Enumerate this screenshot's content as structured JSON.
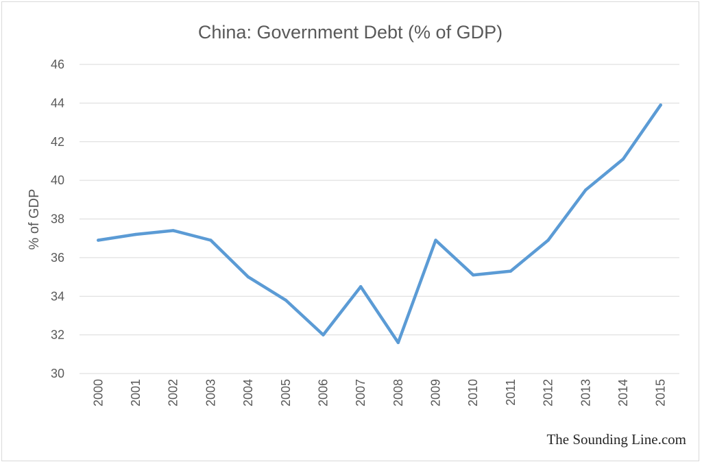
{
  "chart_data": {
    "type": "line",
    "title": "China: Government Debt (% of GDP)",
    "xlabel": "",
    "ylabel": "% of GDP",
    "ylim": [
      30,
      46
    ],
    "y_ticks": [
      30,
      32,
      34,
      36,
      38,
      40,
      42,
      44,
      46
    ],
    "grid": true,
    "legend": "none",
    "categories": [
      "2000",
      "2001",
      "2002",
      "2003",
      "2004",
      "2005",
      "2006",
      "2007",
      "2008",
      "2009",
      "2010",
      "2011",
      "2012",
      "2013",
      "2014",
      "2015"
    ],
    "series": [
      {
        "values": [
          36.9,
          37.2,
          37.4,
          36.9,
          35.0,
          33.8,
          32.0,
          34.5,
          31.6,
          36.9,
          35.1,
          35.3,
          36.9,
          39.5,
          41.1,
          43.9
        ],
        "color": "#5b9bd5"
      }
    ]
  },
  "credit": "The Sounding Line.com"
}
